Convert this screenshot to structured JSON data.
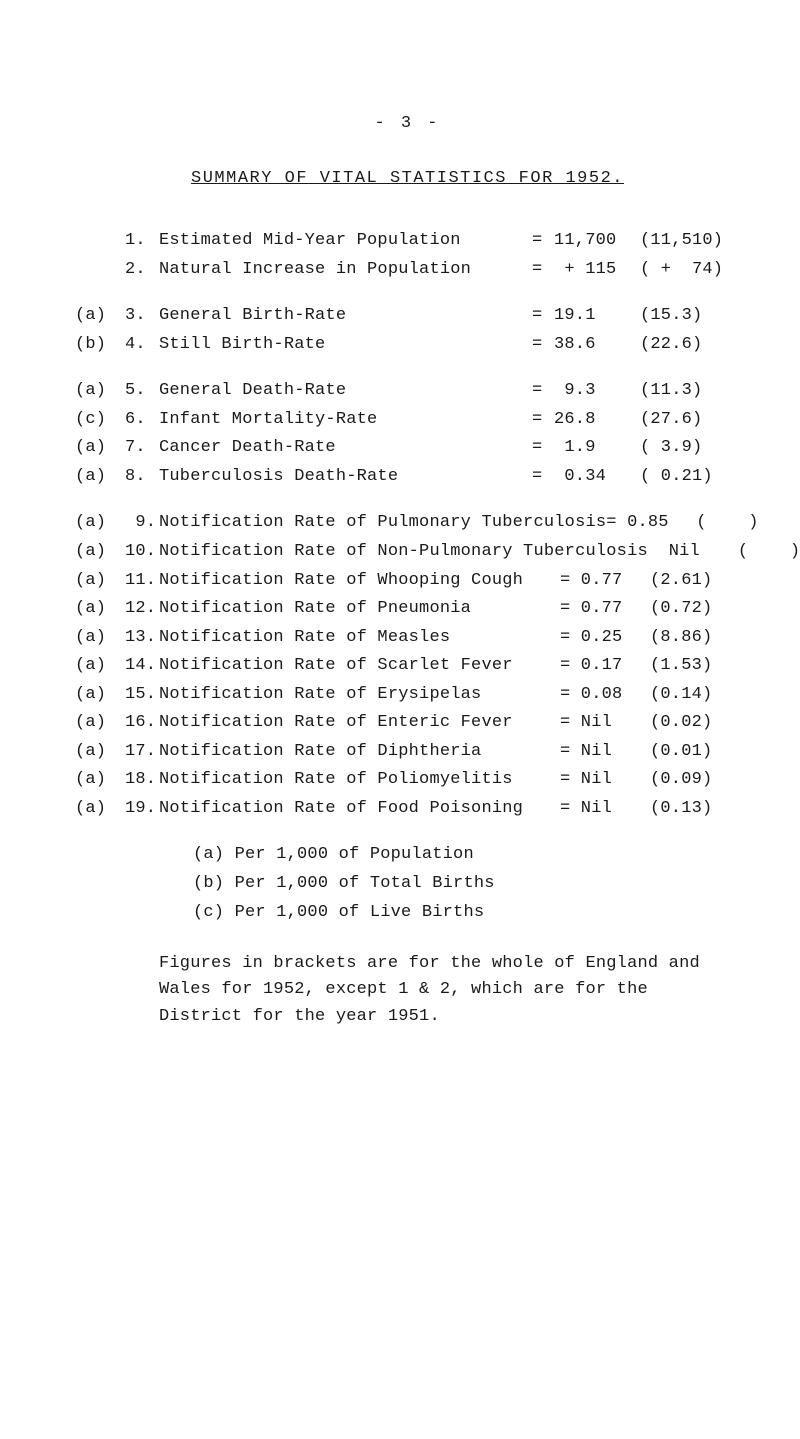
{
  "page_number_line": "- 3 -",
  "title": "SUMMARY  OF  VITAL  STATISTICS  FOR  1952.",
  "group1": [
    {
      "lab": "",
      "num": "1.",
      "desc": "Estimated Mid-Year Population",
      "val": "11,700",
      "br": "(11,510)"
    },
    {
      "lab": "",
      "num": "2.",
      "desc": "Natural Increase in Population",
      "val": " + 115",
      "br": "( +  74)"
    }
  ],
  "group2": [
    {
      "lab": "(a)",
      "num": "3.",
      "desc": "General Birth-Rate",
      "val": "19.1",
      "br": "(15.3)"
    },
    {
      "lab": "(b)",
      "num": "4.",
      "desc": "Still Birth-Rate",
      "val": "38.6",
      "br": "(22.6)"
    }
  ],
  "group3": [
    {
      "lab": "(a)",
      "num": "5.",
      "desc": "General Death-Rate",
      "val": " 9.3",
      "br": "(11.3)"
    },
    {
      "lab": "(c)",
      "num": "6.",
      "desc": "Infant Mortality-Rate",
      "val": "26.8",
      "br": "(27.6)"
    },
    {
      "lab": "(a)",
      "num": "7.",
      "desc": "Cancer Death-Rate",
      "val": " 1.9",
      "br": "( 3.9)"
    },
    {
      "lab": "(a)",
      "num": "8.",
      "desc": "Tuberculosis Death-Rate",
      "val": " 0.34",
      "br": "( 0.21)"
    }
  ],
  "group4": [
    {
      "lab": "(a)",
      "num": " 9.",
      "desc": "Notification Rate of Pulmonary Tuberculosis",
      "eq": "= 0.85",
      "br": "(    )"
    },
    {
      "lab": "(a)",
      "num": "10.",
      "desc": "Notification Rate of Non-Pulmonary Tuberculosis",
      "eq": "  Nil",
      "br": "(    )"
    },
    {
      "lab": "(a)",
      "num": "11.",
      "desc": "Notification Rate of Whooping Cough",
      "eq": "= 0.77",
      "br": "(2.61)"
    },
    {
      "lab": "(a)",
      "num": "12.",
      "desc": "Notification Rate of Pneumonia",
      "eq": "= 0.77",
      "br": "(0.72)"
    },
    {
      "lab": "(a)",
      "num": "13.",
      "desc": "Notification Rate of Measles",
      "eq": "= 0.25",
      "br": "(8.86)"
    },
    {
      "lab": "(a)",
      "num": "14.",
      "desc": "Notification Rate of Scarlet Fever",
      "eq": "= 0.17",
      "br": "(1.53)"
    },
    {
      "lab": "(a)",
      "num": "15.",
      "desc": "Notification Rate of Erysipelas",
      "eq": "= 0.08",
      "br": "(0.14)"
    },
    {
      "lab": "(a)",
      "num": "16.",
      "desc": "Notification Rate of Enteric Fever",
      "eq": "= Nil",
      "br": "(0.02)"
    },
    {
      "lab": "(a)",
      "num": "17.",
      "desc": "Notification Rate of Diphtheria",
      "eq": "= Nil",
      "br": "(0.01)"
    },
    {
      "lab": "(a)",
      "num": "18.",
      "desc": "Notification Rate of Poliomyelitis",
      "eq": "= Nil",
      "br": "(0.09)"
    },
    {
      "lab": "(a)",
      "num": "19.",
      "desc": "Notification Rate of Food Poisoning",
      "eq": "= Nil",
      "br": "(0.13)"
    }
  ],
  "footnotes": [
    "(a) Per 1,000 of Population",
    "(b) Per 1,000 of Total Births",
    "(c) Per 1,000 of Live Births"
  ],
  "paragraph": "Figures in brackets are for the whole of England and Wales for 1952, except 1 & 2, which are for the District for the year 1951."
}
